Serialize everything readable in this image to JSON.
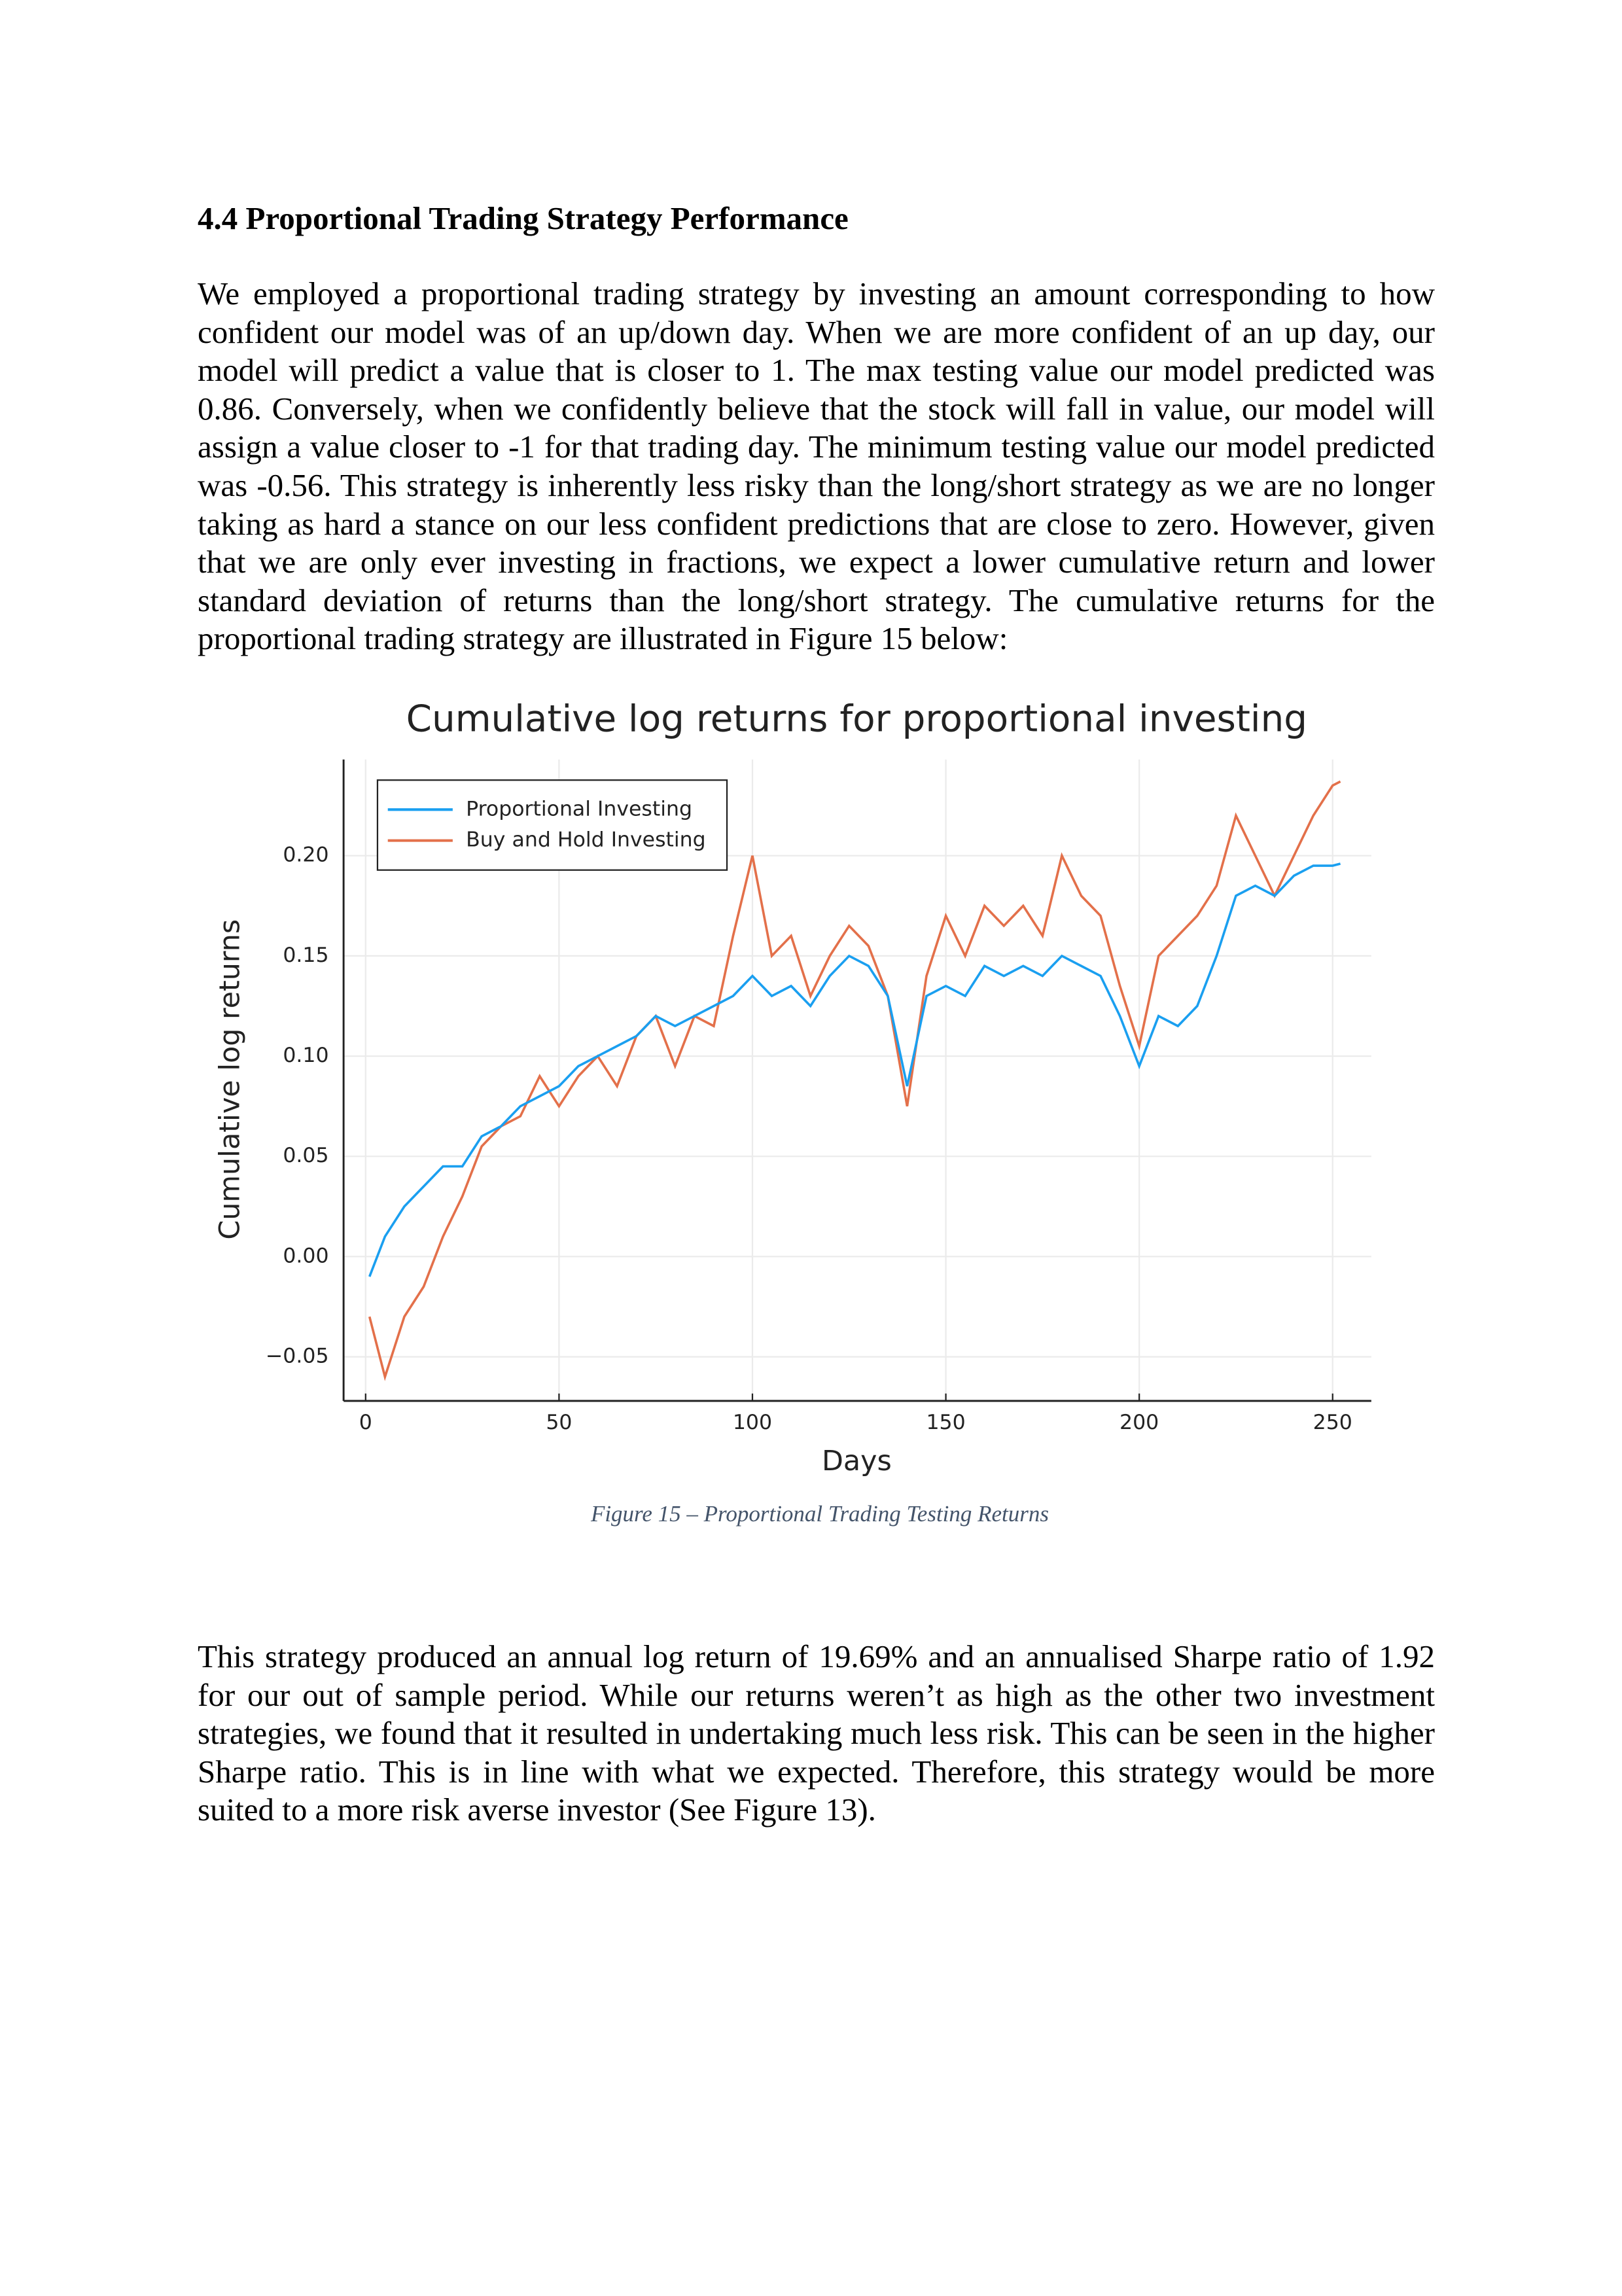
{
  "heading": "4.4 Proportional Trading Strategy Performance",
  "paragraphs": [
    "We employed a proportional trading strategy by investing an amount corresponding to how confident our model was of an up/down day. When we are more confident of an up day, our model will predict a value that is closer to 1. The max testing value our model predicted was 0.86. Conversely, when we confidently believe that the stock will fall in value, our model will assign a value closer to -1 for that trading day. The minimum testing value our model predicted was -0.56. This strategy is inherently less risky than the long/short strategy as we are no longer taking as hard a stance on our less confident predictions that are close to zero. However, given that we are only ever investing in fractions, we expect a lower cumulative return and lower standard deviation of returns than the long/short strategy. The cumulative returns for the proportional trading strategy are illustrated in Figure 15 below:",
    "This strategy produced an annual log return of 19.69% and an annualised Sharpe ratio of 1.92 for our out of sample period. While our returns weren’t as high as the other two investment strategies, we found that it resulted in undertaking much less risk. This can be seen in the higher Sharpe ratio. This is in line with what we expected. Therefore, this strategy would be more suited to a more risk averse investor (See Figure 13)."
  ],
  "caption": "Figure 15 – Proportional Trading Testing Returns",
  "chart_data": {
    "type": "line",
    "title": "Cumulative log returns for proportional investing",
    "x_label": "Days",
    "y_label": "Cumulative log returns",
    "x": [
      1,
      5,
      10,
      15,
      20,
      25,
      30,
      35,
      40,
      45,
      50,
      55,
      60,
      65,
      70,
      75,
      80,
      85,
      90,
      95,
      100,
      105,
      110,
      115,
      120,
      125,
      130,
      135,
      140,
      145,
      150,
      155,
      160,
      165,
      170,
      175,
      180,
      185,
      190,
      195,
      200,
      205,
      210,
      215,
      220,
      225,
      230,
      235,
      240,
      245,
      250,
      252
    ],
    "series": [
      {
        "name": "Proportional Investing",
        "color": "#1a9ff0",
        "values": [
          -0.01,
          0.01,
          0.025,
          0.035,
          0.045,
          0.045,
          0.06,
          0.065,
          0.075,
          0.08,
          0.085,
          0.095,
          0.1,
          0.105,
          0.11,
          0.12,
          0.115,
          0.12,
          0.125,
          0.13,
          0.14,
          0.13,
          0.135,
          0.125,
          0.14,
          0.15,
          0.145,
          0.13,
          0.085,
          0.13,
          0.135,
          0.13,
          0.145,
          0.14,
          0.145,
          0.14,
          0.15,
          0.145,
          0.14,
          0.12,
          0.095,
          0.12,
          0.115,
          0.125,
          0.15,
          0.18,
          0.185,
          0.18,
          0.19,
          0.195,
          0.195,
          0.196
        ]
      },
      {
        "name": "Buy and Hold Investing",
        "color": "#e3704a",
        "values": [
          -0.03,
          -0.06,
          -0.03,
          -0.015,
          0.01,
          0.03,
          0.055,
          0.065,
          0.07,
          0.09,
          0.075,
          0.09,
          0.1,
          0.085,
          0.11,
          0.12,
          0.095,
          0.12,
          0.115,
          0.16,
          0.2,
          0.15,
          0.16,
          0.13,
          0.15,
          0.165,
          0.155,
          0.13,
          0.075,
          0.14,
          0.17,
          0.15,
          0.175,
          0.165,
          0.175,
          0.16,
          0.2,
          0.18,
          0.17,
          0.135,
          0.105,
          0.15,
          0.16,
          0.17,
          0.185,
          0.22,
          0.2,
          0.18,
          0.2,
          0.22,
          0.235,
          0.237
        ]
      }
    ],
    "xlim": [
      -5.7,
      260
    ],
    "ylim": [
      -0.072,
      0.248
    ],
    "xticks": [
      0,
      50,
      100,
      150,
      200,
      250
    ],
    "yticks": [
      {
        "value": -0.05,
        "label": "−0.05"
      },
      {
        "value": 0,
        "label": "0.00"
      },
      0.05,
      {
        "value": 0.1,
        "label": "0.10"
      },
      0.15,
      {
        "value": 0.2,
        "label": "0.20"
      }
    ],
    "grid": true,
    "legend": "top-left"
  }
}
